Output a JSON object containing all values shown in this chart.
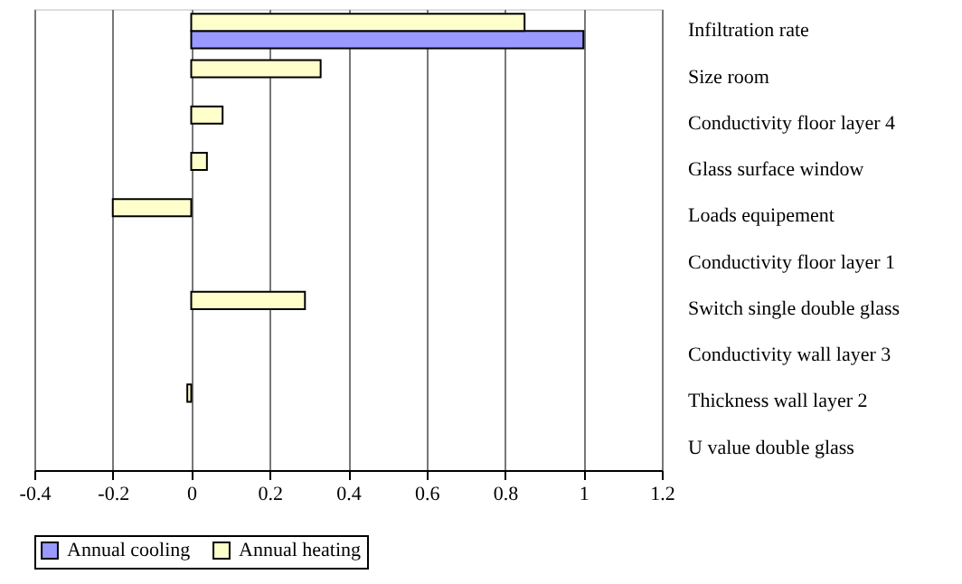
{
  "chart_data": {
    "type": "bar",
    "orientation": "horizontal",
    "categories": [
      "Infiltration rate",
      "Size room",
      "Conductivity floor layer 4",
      "Glass surface window",
      "Loads equipement",
      "Conductivity floor layer 1",
      "Switch single double glass",
      "Conductivity wall layer 3",
      "Thickness wall layer 2",
      "U value double glass"
    ],
    "series": [
      {
        "name": "Annual cooling",
        "color": "#9999ff",
        "values": [
          1,
          null,
          null,
          null,
          null,
          null,
          null,
          null,
          null,
          null
        ]
      },
      {
        "name": "Annual heating",
        "color": "#ffffcc",
        "values": [
          0.85,
          0.33,
          0.08,
          0.04,
          -0.2,
          null,
          0.29,
          null,
          -0.01,
          null
        ]
      }
    ],
    "xlim": [
      -0.4,
      1.2
    ],
    "xticks": [
      -0.4,
      -0.2,
      0,
      0.2,
      0.4,
      0.6,
      0.8,
      1,
      1.2
    ],
    "grid": "x",
    "legend": "bottom"
  }
}
